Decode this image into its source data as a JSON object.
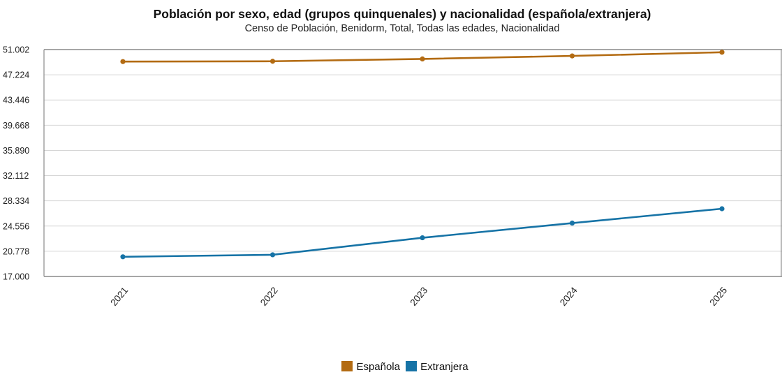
{
  "chart_data": {
    "type": "line",
    "title": "Población por sexo, edad (grupos quinquenales) y nacionalidad (española/extranjera)",
    "subtitle": "Censo de Población, Benidorm, Total, Todas las edades, Nacionalidad",
    "categories": [
      "2021",
      "2022",
      "2023",
      "2024",
      "2025"
    ],
    "y_ticks": [
      "51.002",
      "47.224",
      "43.446",
      "39.668",
      "35.890",
      "32.112",
      "28.334",
      "24.556",
      "20.778",
      "17.000"
    ],
    "ylim": [
      17000,
      51002
    ],
    "grid": true,
    "legend_position": "bottom-center",
    "series": [
      {
        "name": "Española",
        "color": "#b36b12",
        "values": [
          49200,
          49250,
          49600,
          50050,
          50600
        ]
      },
      {
        "name": "Extranjera",
        "color": "#1673a6",
        "values": [
          19950,
          20250,
          22800,
          25000,
          27150
        ]
      }
    ]
  }
}
